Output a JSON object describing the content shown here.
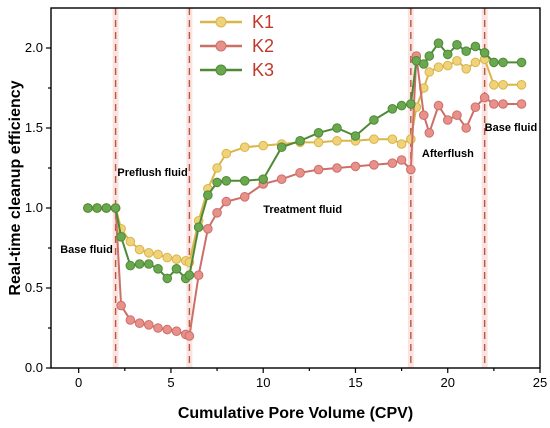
{
  "chart_data": {
    "type": "line",
    "xlabel": "Cumulative Pore Volume (CPV)",
    "ylabel": "Real-time cleanup efficiency",
    "xlim": [
      -1.5,
      25
    ],
    "ylim": [
      0,
      2.25
    ],
    "xticks": [
      0,
      5,
      10,
      15,
      20,
      25
    ],
    "yticks": [
      0.0,
      0.5,
      1.0,
      1.5,
      2.0
    ],
    "xtick_labels": [
      "0",
      "5",
      "10",
      "15",
      "20",
      "25"
    ],
    "ytick_labels": [
      "0.0",
      "0.5",
      "1.0",
      "1.5",
      "2.0"
    ],
    "stage_boundaries": [
      2,
      6,
      18,
      22
    ],
    "annotations": [
      {
        "text": "Base fluid",
        "x": -1.0,
        "y": 0.72
      },
      {
        "text": "Preflush fluid",
        "x": 2.1,
        "y": 1.2
      },
      {
        "text": "Treatment fluid",
        "x": 10.0,
        "y": 0.97
      },
      {
        "text": "Afterflush",
        "x": 18.6,
        "y": 1.32
      },
      {
        "text": "Base fluid",
        "x": 22.0,
        "y": 1.48
      }
    ],
    "legend_position": "top-center",
    "series": [
      {
        "name": "K1",
        "color": "#f0d27a",
        "stroke": "#d9b64a",
        "x": [
          0.5,
          1,
          1.5,
          2,
          2.3,
          2.8,
          3.3,
          3.8,
          4.3,
          4.8,
          5.3,
          5.8,
          6,
          6.5,
          7,
          7.5,
          8,
          9,
          10,
          11,
          12,
          13,
          14,
          15,
          16,
          17,
          17.5,
          18,
          18.3,
          18.7,
          19,
          19.5,
          20,
          20.5,
          21,
          21.5,
          22,
          22.5,
          23,
          24
        ],
        "y": [
          1.0,
          1.0,
          1.0,
          1.0,
          0.87,
          0.79,
          0.74,
          0.72,
          0.71,
          0.69,
          0.68,
          0.67,
          0.66,
          0.92,
          1.12,
          1.25,
          1.34,
          1.38,
          1.39,
          1.4,
          1.41,
          1.41,
          1.42,
          1.42,
          1.43,
          1.43,
          1.4,
          1.43,
          1.63,
          1.75,
          1.85,
          1.88,
          1.89,
          1.92,
          1.87,
          1.91,
          1.93,
          1.77,
          1.77,
          1.77
        ]
      },
      {
        "name": "K2",
        "color": "#e8908a",
        "stroke": "#cc6f69",
        "x": [
          0.5,
          1,
          1.5,
          2,
          2.3,
          2.8,
          3.3,
          3.8,
          4.3,
          4.8,
          5.3,
          5.8,
          6,
          6.5,
          7,
          7.5,
          8,
          9,
          10,
          11,
          12,
          13,
          14,
          15,
          16,
          17,
          17.5,
          18,
          18.3,
          18.7,
          19,
          19.5,
          20,
          20.5,
          21,
          21.5,
          22,
          22.5,
          23,
          24
        ],
        "y": [
          1.0,
          1.0,
          1.0,
          1.0,
          0.39,
          0.3,
          0.28,
          0.27,
          0.25,
          0.24,
          0.23,
          0.21,
          0.2,
          0.58,
          0.87,
          0.97,
          1.04,
          1.07,
          1.15,
          1.18,
          1.22,
          1.24,
          1.25,
          1.26,
          1.27,
          1.28,
          1.3,
          1.24,
          1.95,
          1.58,
          1.47,
          1.64,
          1.55,
          1.58,
          1.5,
          1.63,
          1.69,
          1.65,
          1.65,
          1.65
        ]
      },
      {
        "name": "K3",
        "color": "#6aa84f",
        "stroke": "#4e8a36",
        "x": [
          0.5,
          1,
          1.5,
          2,
          2.3,
          2.8,
          3.3,
          3.8,
          4.3,
          4.8,
          5.3,
          5.8,
          6,
          6.5,
          7,
          7.5,
          8,
          9,
          10,
          11,
          12,
          13,
          14,
          15,
          16,
          17,
          17.5,
          18,
          18.3,
          18.7,
          19,
          19.5,
          20,
          20.5,
          21,
          21.5,
          22,
          22.5,
          23,
          24
        ],
        "y": [
          1.0,
          1.0,
          1.0,
          1.0,
          0.82,
          0.64,
          0.65,
          0.65,
          0.62,
          0.56,
          0.62,
          0.56,
          0.58,
          0.88,
          1.08,
          1.16,
          1.17,
          1.17,
          1.18,
          1.38,
          1.42,
          1.47,
          1.5,
          1.45,
          1.55,
          1.62,
          1.64,
          1.65,
          1.92,
          1.9,
          1.95,
          2.03,
          1.96,
          2.02,
          1.98,
          2.01,
          1.97,
          1.91,
          1.91,
          1.91
        ]
      }
    ]
  }
}
